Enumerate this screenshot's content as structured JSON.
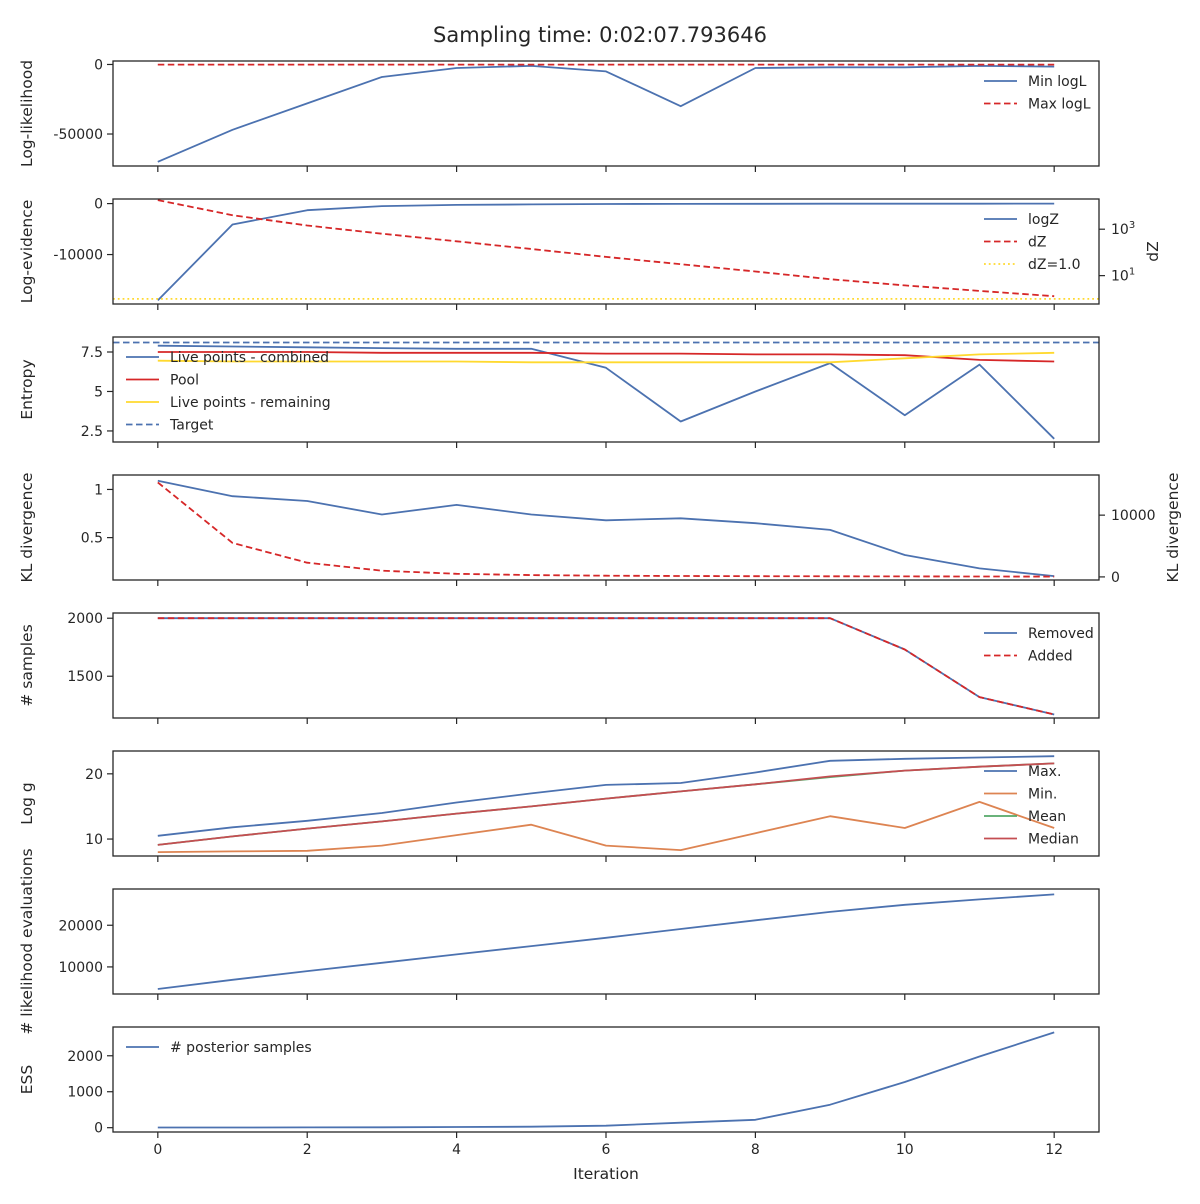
{
  "figure": {
    "title": "Sampling time: 0:02:07.793646",
    "xlabel": "Iteration",
    "x_ticks": [
      0,
      2,
      4,
      6,
      8,
      10,
      12
    ],
    "x_range": [
      -0.6,
      12.6
    ]
  },
  "colors": {
    "blue": "#4c72b0",
    "red": "#d62728",
    "yellow": "#ffd92f",
    "orange": "#dd8452",
    "green": "#55a868",
    "brown": "#c44e52"
  },
  "chart_data": [
    {
      "type": "line",
      "ylabel": "Log-likelihood",
      "ylim": [
        -73000,
        2500
      ],
      "yticks": [
        0,
        -50000
      ],
      "legend": "right",
      "x": [
        0,
        1,
        2,
        3,
        4,
        5,
        6,
        7,
        8,
        9,
        10,
        11,
        12
      ],
      "series": [
        {
          "name": "Min logL",
          "color": "blue",
          "dash": "solid",
          "values": [
            -70000,
            -47000,
            -28000,
            -9000,
            -2500,
            -1000,
            -5000,
            -30000,
            -2500,
            -2000,
            -2000,
            -1000,
            -1500
          ]
        },
        {
          "name": "Max logL",
          "color": "red",
          "dash": "dashed",
          "values": [
            -100,
            -100,
            -100,
            -100,
            -100,
            -100,
            -100,
            -100,
            -100,
            -100,
            -100,
            -100,
            -100
          ]
        }
      ]
    },
    {
      "type": "line",
      "ylabel": "Log-evidence",
      "ylim": [
        -19700,
        900
      ],
      "yticks": [
        0,
        -10000
      ],
      "ylabel_right": "dZ",
      "y2_scale": "log",
      "y2lim": [
        0.6,
        20000
      ],
      "y2ticks": [
        {
          "value": 1000,
          "base": "10",
          "exp": "3"
        },
        {
          "value": 10,
          "base": "10",
          "exp": "1"
        }
      ],
      "legend": "right",
      "x": [
        0,
        1,
        2,
        3,
        4,
        5,
        6,
        7,
        8,
        9,
        10,
        11,
        12
      ],
      "series": [
        {
          "name": "logZ",
          "color": "blue",
          "dash": "solid",
          "axis": "left",
          "values": [
            -19000,
            -4100,
            -1300,
            -500,
            -250,
            -150,
            -90,
            -60,
            -40,
            -30,
            -20,
            -15,
            -10
          ]
        },
        {
          "name": "dZ",
          "color": "red",
          "dash": "dashed",
          "axis": "right",
          "values": [
            18000,
            4000,
            1450,
            640,
            300,
            140,
            64,
            31,
            15,
            7,
            3.8,
            2.2,
            1.3
          ]
        },
        {
          "name": "dZ=1.0",
          "color": "yellow",
          "dash": "dotted",
          "axis": "right",
          "hline": 1.0
        }
      ]
    },
    {
      "type": "line",
      "ylabel": "Entropy",
      "ylim": [
        1.8,
        8.45
      ],
      "yticks": [
        7.5,
        5.0,
        2.5
      ],
      "legend": "left",
      "x": [
        0,
        1,
        2,
        3,
        4,
        5,
        6,
        7,
        8,
        9,
        10,
        11,
        12
      ],
      "series": [
        {
          "name": "Live points - combined",
          "color": "blue",
          "dash": "solid",
          "values": [
            7.9,
            7.85,
            7.8,
            7.75,
            7.7,
            7.7,
            6.5,
            3.1,
            5.0,
            6.8,
            3.5,
            6.7,
            2.0
          ]
        },
        {
          "name": "Pool",
          "color": "red",
          "dash": "solid",
          "values": [
            7.5,
            7.5,
            7.5,
            7.45,
            7.45,
            7.45,
            7.4,
            7.4,
            7.35,
            7.35,
            7.3,
            7.0,
            6.9
          ]
        },
        {
          "name": "Live points - remaining",
          "color": "yellow",
          "dash": "solid",
          "values": [
            6.95,
            6.9,
            6.9,
            6.9,
            6.9,
            6.85,
            6.85,
            6.85,
            6.85,
            6.85,
            7.1,
            7.35,
            7.45
          ]
        },
        {
          "name": "Target",
          "color": "blue",
          "dash": "dashed",
          "hline": 8.1
        }
      ]
    },
    {
      "type": "line",
      "ylabel": "KL divergence",
      "ylim": [
        0.06,
        1.15
      ],
      "yticks": [
        1.0,
        0.5
      ],
      "ylabel_right": "KL divergence",
      "y2lim": [
        -500,
        16500
      ],
      "y2ticks": [
        10000,
        0
      ],
      "x": [
        0,
        1,
        2,
        3,
        4,
        5,
        6,
        7,
        8,
        9,
        10,
        11,
        12
      ],
      "series": [
        {
          "name": "",
          "color": "blue",
          "dash": "solid",
          "axis": "left",
          "values": [
            1.09,
            0.93,
            0.88,
            0.74,
            0.84,
            0.74,
            0.68,
            0.7,
            0.65,
            0.58,
            0.32,
            0.18,
            0.1
          ]
        },
        {
          "name": "",
          "color": "red",
          "dash": "dashed",
          "axis": "right",
          "values": [
            15300,
            5500,
            2300,
            1000,
            500,
            300,
            200,
            150,
            120,
            100,
            80,
            60,
            50
          ]
        }
      ]
    },
    {
      "type": "line",
      "ylabel": "# samples",
      "ylim": [
        1140,
        2045
      ],
      "yticks": [
        2000,
        1500
      ],
      "legend": "right",
      "x": [
        0,
        1,
        2,
        3,
        4,
        5,
        6,
        7,
        8,
        9,
        10,
        11,
        12
      ],
      "series": [
        {
          "name": "Removed",
          "color": "blue",
          "dash": "solid",
          "values": [
            2000,
            2000,
            2000,
            2000,
            2000,
            2000,
            2000,
            2000,
            2000,
            2000,
            1730,
            1320,
            1170
          ]
        },
        {
          "name": "Added",
          "color": "red",
          "dash": "dashed",
          "values": [
            2000,
            2000,
            2000,
            2000,
            2000,
            2000,
            2000,
            2000,
            2000,
            2000,
            1730,
            1320,
            1170
          ]
        }
      ]
    },
    {
      "type": "line",
      "ylabel": "Log g",
      "ylim": [
        7.4,
        23.5
      ],
      "yticks": [
        20,
        10
      ],
      "legend": "right",
      "x": [
        0,
        1,
        2,
        3,
        4,
        5,
        6,
        7,
        8,
        9,
        10,
        11,
        12
      ],
      "series": [
        {
          "name": "Max.",
          "color": "blue",
          "dash": "solid",
          "values": [
            10.5,
            11.8,
            12.8,
            14.0,
            15.6,
            17.0,
            18.3,
            18.6,
            20.2,
            22.0,
            22.3,
            22.5,
            22.7
          ]
        },
        {
          "name": "Min.",
          "color": "orange",
          "dash": "solid",
          "values": [
            8.0,
            8.1,
            8.2,
            9.0,
            10.6,
            12.2,
            9.0,
            8.3,
            10.9,
            13.5,
            11.7,
            15.7,
            11.7
          ]
        },
        {
          "name": "Mean",
          "color": "green",
          "dash": "solid",
          "values": [
            9.1,
            10.4,
            11.6,
            12.7,
            13.9,
            15.0,
            16.2,
            17.3,
            18.4,
            19.5,
            20.5,
            21.1,
            21.6
          ]
        },
        {
          "name": "Median",
          "color": "brown",
          "dash": "solid",
          "values": [
            9.1,
            10.4,
            11.6,
            12.7,
            13.9,
            15.0,
            16.2,
            17.3,
            18.4,
            19.6,
            20.5,
            21.1,
            21.6
          ]
        }
      ]
    },
    {
      "type": "line",
      "ylabel": "# likelihood evaluations",
      "ylim": [
        3500,
        28700
      ],
      "yticks": [
        20000,
        10000
      ],
      "x": [
        0,
        1,
        2,
        3,
        4,
        5,
        6,
        7,
        8,
        9,
        10,
        11,
        12
      ],
      "series": [
        {
          "name": "",
          "color": "blue",
          "dash": "solid",
          "values": [
            4700,
            6900,
            9000,
            11000,
            13000,
            15000,
            17000,
            19100,
            21200,
            23200,
            24900,
            26200,
            27400
          ]
        }
      ]
    },
    {
      "type": "line",
      "ylabel": "ESS",
      "ylim": [
        -120,
        2800
      ],
      "yticks": [
        2000,
        1000,
        0
      ],
      "legend": "left",
      "x": [
        0,
        1,
        2,
        3,
        4,
        5,
        6,
        7,
        8,
        9,
        10,
        11,
        12
      ],
      "series": [
        {
          "name": "# posterior samples",
          "color": "blue",
          "dash": "solid",
          "values": [
            5,
            5,
            8,
            12,
            18,
            28,
            55,
            140,
            220,
            640,
            1270,
            1980,
            2650
          ]
        }
      ]
    }
  ]
}
